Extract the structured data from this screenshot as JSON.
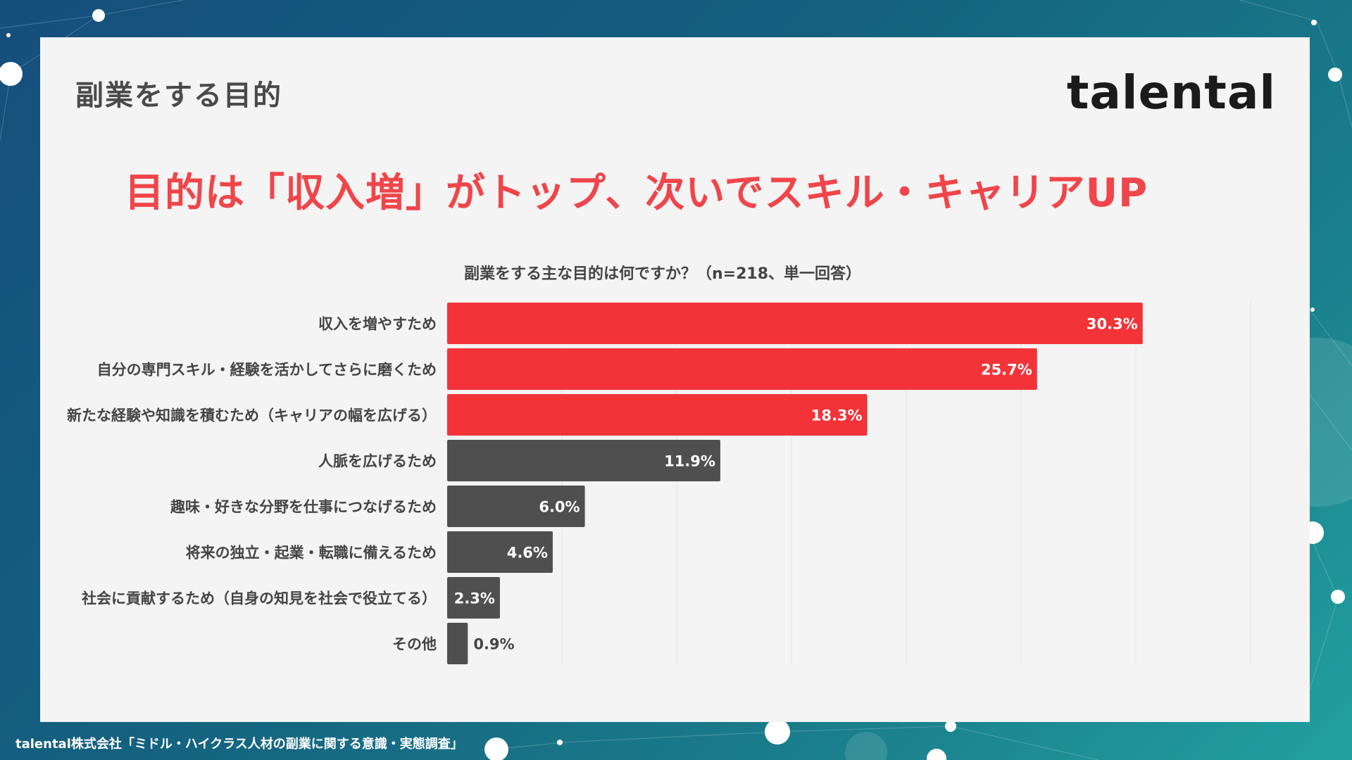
{
  "page": {
    "section_title": "副業をする目的",
    "logo": "talental",
    "headline": "目的は「収入増」がトップ、次いでスキル・キャリアUP",
    "footer": "talental株式会社「ミドル・ハイクラス人材の副業に関する意識・実態調査」"
  },
  "colors": {
    "highlight": "#f23439",
    "neutral": "#4f4f4f",
    "headline": "#f0454a"
  },
  "chart_data": {
    "type": "bar",
    "orientation": "horizontal",
    "title": "副業をする主な目的は何ですか？（n=218、単一回答）",
    "xlabel": "",
    "ylabel": "",
    "xlim": [
      0,
      35
    ],
    "grid": true,
    "categories": [
      "収入を増やすため",
      "自分の専門スキル・経験を活かしてさらに磨くため",
      "新たな経験や知識を積むため（キャリアの幅を広げる）",
      "人脈を広げるため",
      "趣味・好きな分野を仕事につなげるため",
      "将来の独立・起業・転職に備えるため",
      "社会に貢献するため（自身の知見を社会で役立てる）",
      "その他"
    ],
    "values": [
      30.3,
      25.7,
      18.3,
      11.9,
      6.0,
      4.6,
      2.3,
      0.9
    ],
    "value_labels": [
      "30.3%",
      "25.7%",
      "18.3%",
      "11.9%",
      "6.0%",
      "4.6%",
      "2.3%",
      "0.9%"
    ],
    "highlight": [
      true,
      true,
      true,
      false,
      false,
      false,
      false,
      false
    ]
  }
}
